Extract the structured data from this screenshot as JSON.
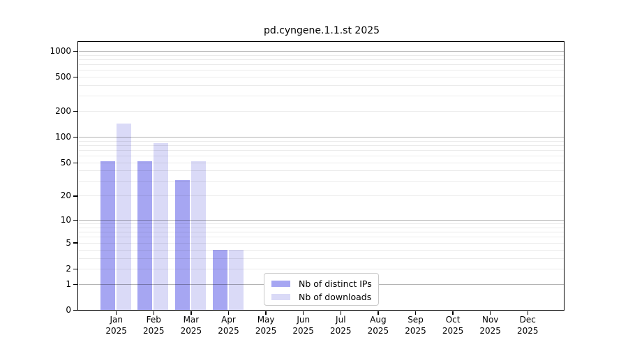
{
  "figure": {
    "title": "pd.cyngene.1.1.st 2025"
  },
  "legend": {
    "items": [
      {
        "label": "Nb of distinct IPs",
        "color": "#a6a6f2"
      },
      {
        "label": "Nb of downloads",
        "color": "#dadaf7"
      }
    ]
  },
  "chart_data": {
    "type": "bar",
    "title": "pd.cyngene.1.1.st 2025",
    "categories": [
      "Jan 2025",
      "Feb 2025",
      "Mar 2025",
      "Apr 2025",
      "May 2025",
      "Jun 2025",
      "Jul 2025",
      "Aug 2025",
      "Sep 2025",
      "Oct 2025",
      "Nov 2025",
      "Dec 2025"
    ],
    "month_labels": [
      "Jan",
      "Feb",
      "Mar",
      "Apr",
      "May",
      "Jun",
      "Jul",
      "Aug",
      "Sep",
      "Oct",
      "Nov",
      "Dec"
    ],
    "year_label": "2025",
    "series": [
      {
        "name": "Nb of distinct IPs",
        "color": "#a6a6f2",
        "values": [
          52,
          52,
          31,
          4,
          0,
          0,
          0,
          0,
          0,
          0,
          0,
          0
        ]
      },
      {
        "name": "Nb of downloads",
        "color": "#dadaf7",
        "values": [
          145,
          85,
          52,
          4,
          0,
          0,
          0,
          0,
          0,
          0,
          0,
          0
        ]
      }
    ],
    "xlabel": "",
    "ylabel": "",
    "y_scale": "log10(1+y)",
    "ylim": [
      0,
      1280
    ],
    "y_tick_values": [
      1000,
      500,
      200,
      100,
      50,
      20,
      10,
      5,
      2,
      1,
      0
    ],
    "major_gridlines": [
      1,
      10,
      100,
      1000
    ],
    "minor_gridlines": [
      2,
      3,
      4,
      5,
      6,
      7,
      8,
      9,
      20,
      30,
      40,
      50,
      60,
      70,
      80,
      90,
      200,
      300,
      400,
      500,
      600,
      700,
      800,
      900
    ],
    "grid": true,
    "legend_position": "inside-bottom-center"
  }
}
